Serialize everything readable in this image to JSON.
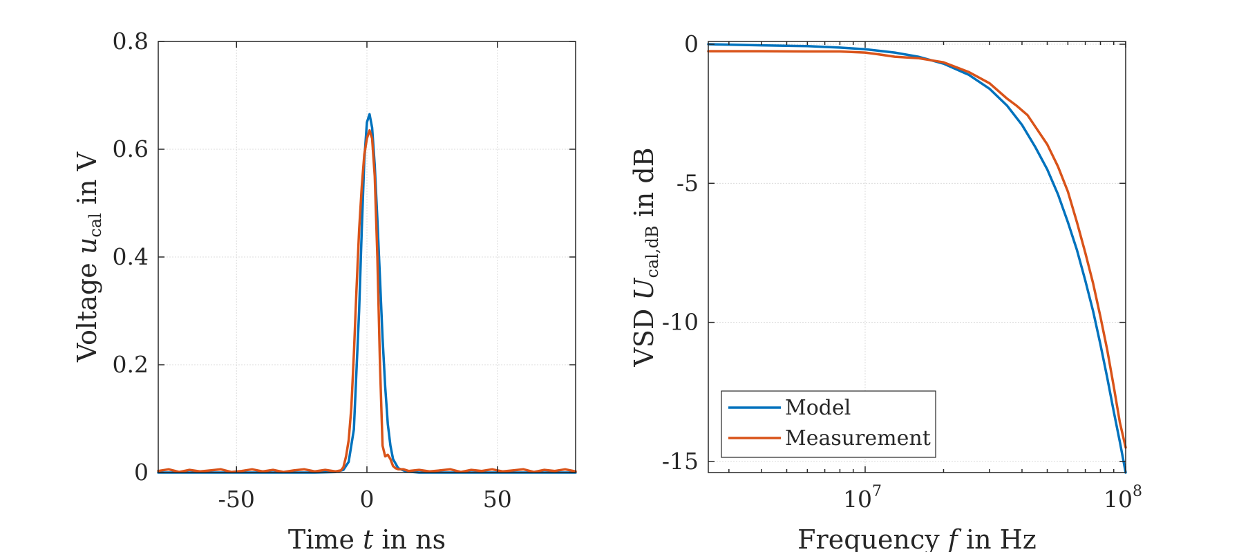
{
  "colors": {
    "model": "#0072BD",
    "measurement": "#D95319"
  },
  "chart_data": [
    {
      "type": "line",
      "xlabel": {
        "prefix": "Time ",
        "var": "t",
        "suffix": " in ns"
      },
      "ylabel": {
        "prefix": "Voltage ",
        "var": "u",
        "sub": "cal",
        "suffix": " in V"
      },
      "xlim": [
        -80,
        80
      ],
      "ylim": [
        0,
        0.8
      ],
      "xticks": [
        -50,
        0,
        50
      ],
      "xtick_labels": [
        "-50",
        "0",
        "50"
      ],
      "yticks": [
        0,
        0.2,
        0.4,
        0.6,
        0.8
      ],
      "ytick_labels": [
        "0",
        "0.2",
        "0.4",
        "0.6",
        "0.8"
      ],
      "grid": true,
      "series": [
        {
          "name": "Model",
          "color": "#0072BD",
          "x": [
            -80,
            -20,
            -12,
            -9,
            -7,
            -5,
            -3,
            -2,
            -1,
            0,
            1,
            2,
            3,
            4,
            5,
            6,
            7,
            8,
            9,
            10,
            12,
            15,
            20,
            80
          ],
          "y": [
            0,
            0,
            0.001,
            0.005,
            0.02,
            0.08,
            0.3,
            0.45,
            0.58,
            0.65,
            0.665,
            0.64,
            0.57,
            0.47,
            0.36,
            0.25,
            0.16,
            0.09,
            0.05,
            0.025,
            0.008,
            0.002,
            0,
            0
          ]
        },
        {
          "name": "Measurement",
          "color": "#D95319",
          "x": [
            -80,
            -76,
            -72,
            -68,
            -64,
            -60,
            -56,
            -52,
            -48,
            -44,
            -40,
            -36,
            -32,
            -28,
            -24,
            -20,
            -16,
            -12,
            -10,
            -9,
            -8,
            -7,
            -6,
            -5,
            -4,
            -3,
            -2,
            -1,
            0,
            1,
            2,
            3,
            4,
            5,
            6,
            7,
            8,
            9,
            10,
            11,
            12,
            14,
            16,
            20,
            24,
            28,
            32,
            36,
            40,
            44,
            48,
            52,
            56,
            60,
            64,
            68,
            72,
            76,
            80
          ],
          "y": [
            0.003,
            0.006,
            0.001,
            0.005,
            0.002,
            0.004,
            0.006,
            0.001,
            0.003,
            0.006,
            0.002,
            0.005,
            0.001,
            0.004,
            0.006,
            0.002,
            0.005,
            0.002,
            0.004,
            0.01,
            0.03,
            0.06,
            0.12,
            0.22,
            0.34,
            0.45,
            0.53,
            0.59,
            0.62,
            0.635,
            0.62,
            0.55,
            0.4,
            0.2,
            0.05,
            0.03,
            0.033,
            0.025,
            0.012,
            0.008,
            0.006,
            0.006,
            0.003,
            0.005,
            0.002,
            0.004,
            0.006,
            0.001,
            0.005,
            0.003,
            0.006,
            0.002,
            0.004,
            0.006,
            0.001,
            0.005,
            0.003,
            0.006,
            0.002
          ]
        }
      ]
    },
    {
      "type": "line",
      "xscale": "log",
      "xlabel": {
        "prefix": "Frequency ",
        "var": "f",
        "suffix": " in Hz"
      },
      "ylabel": {
        "prefix": "VSD ",
        "var": "U",
        "sub": "cal,dB",
        "suffix": " in dB"
      },
      "xlim": [
        2500000.0,
        100000000.0
      ],
      "ylim": [
        -15.4,
        0.1
      ],
      "xtick_labels": [
        {
          "base": "10",
          "exp": "7",
          "value": 10000000.0
        },
        {
          "base": "10",
          "exp": "8",
          "value": 100000000.0
        }
      ],
      "yticks": [
        0,
        -5,
        -10,
        -15
      ],
      "ytick_labels": [
        "0",
        "-5",
        "-10",
        "-15"
      ],
      "grid": true,
      "legend": {
        "position": "bottom-left",
        "entries": [
          "Model",
          "Measurement"
        ]
      },
      "series": [
        {
          "name": "Model",
          "color": "#0072BD",
          "x": [
            2500000.0,
            4000000.0,
            6000000.0,
            8000000.0,
            10000000.0,
            13000000.0,
            16000000.0,
            20000000.0,
            25000000.0,
            30000000.0,
            35000000.0,
            40000000.0,
            45000000.0,
            50000000.0,
            55000000.0,
            60000000.0,
            65000000.0,
            70000000.0,
            75000000.0,
            80000000.0,
            85000000.0,
            90000000.0,
            95000000.0,
            100000000.0
          ],
          "y": [
            0,
            -0.04,
            -0.07,
            -0.12,
            -0.18,
            -0.3,
            -0.45,
            -0.7,
            -1.1,
            -1.6,
            -2.2,
            -2.9,
            -3.7,
            -4.5,
            -5.4,
            -6.4,
            -7.4,
            -8.5,
            -9.6,
            -10.8,
            -12.0,
            -13.2,
            -14.3,
            -15.4
          ]
        },
        {
          "name": "Measurement",
          "color": "#D95319",
          "x": [
            2500000.0,
            4000000.0,
            6000000.0,
            8000000.0,
            10000000.0,
            11000000.0,
            13000000.0,
            16000000.0,
            20000000.0,
            25000000.0,
            30000000.0,
            35000000.0,
            38000000.0,
            42000000.0,
            46000000.0,
            50000000.0,
            55000000.0,
            60000000.0,
            65000000.0,
            70000000.0,
            75000000.0,
            80000000.0,
            85000000.0,
            90000000.0,
            95000000.0,
            100000000.0
          ],
          "y": [
            -0.25,
            -0.25,
            -0.26,
            -0.26,
            -0.3,
            -0.35,
            -0.45,
            -0.5,
            -0.65,
            -1.0,
            -1.4,
            -1.95,
            -2.2,
            -2.55,
            -3.1,
            -3.6,
            -4.4,
            -5.3,
            -6.4,
            -7.5,
            -8.6,
            -9.8,
            -11.0,
            -12.3,
            -13.6,
            -14.5
          ]
        }
      ]
    }
  ]
}
